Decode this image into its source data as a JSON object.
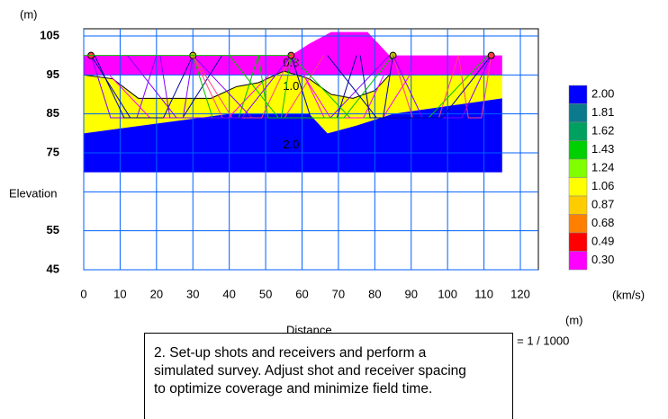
{
  "plot": {
    "y_unit": "(m)",
    "y_label": "Elevation",
    "x_label": "Distance",
    "x_unit": "(m)",
    "xlim": [
      0,
      120
    ],
    "ylim": [
      45,
      105
    ],
    "xticks": [
      0,
      10,
      20,
      30,
      40,
      50,
      60,
      70,
      80,
      90,
      100,
      110,
      120
    ],
    "yticks": [
      45,
      55,
      {
        "value": 65,
        "label": null
      },
      75,
      85,
      95,
      105
    ],
    "layer_labels": [
      "0.8",
      "1.0",
      "2.0"
    ]
  },
  "legend": {
    "labels": [
      "2.00",
      "1.81",
      "1.62",
      "1.43",
      "1.24",
      "1.06",
      "0.87",
      "0.68",
      "0.49",
      "0.30"
    ],
    "colors": [
      "#0000ff",
      "#0a7a8c",
      "#00a060",
      "#00d000",
      "#80ff00",
      "#ffff00",
      "#ffcc00",
      "#ff8000",
      "#ff0000",
      "#ff00ff"
    ],
    "unit": "(km/s)"
  },
  "scale": "Scale = 1 / 1000",
  "caption": [
    "2. Set-up shots and receivers and perform a",
    "simulated survey.  Adjust shot and receiver spacing",
    "to optimize coverage and minimize field time."
  ]
}
